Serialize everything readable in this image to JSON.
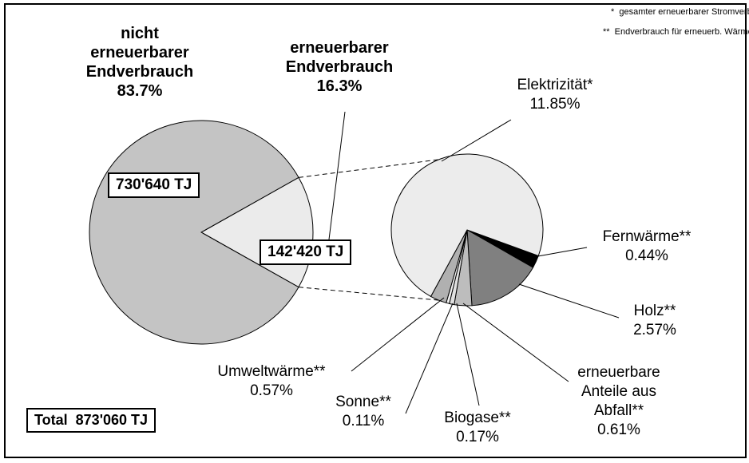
{
  "chart_data": [
    {
      "type": "pie",
      "categories": [
        "nicht erneuerbarer Endverbrauch",
        "erneuerbarer Endverbrauch"
      ],
      "values": [
        730640,
        142420
      ],
      "value_labels": [
        "730'640 TJ",
        "142'420 TJ"
      ],
      "shares": [
        83.7,
        16.3
      ],
      "share_labels": [
        "83.7%",
        "16.3%"
      ],
      "colors": [
        "#c4c4c4",
        "#ebebeb"
      ],
      "total": {
        "value": 873060,
        "label": "Total  873'060 TJ"
      },
      "notes": [
        "*  gesamter erneuerbarer Stromverbrauch",
        "**  Endverbrauch für erneuerb. Wärmeerzeug."
      ]
    },
    {
      "type": "pie",
      "categories": [
        "Fernwärme**",
        "Holz**",
        "erneuerbare Anteile aus Abfall**",
        "Biogase**",
        "Sonne**",
        "Umweltwärme**",
        "Elektrizität*"
      ],
      "values": [
        0.44,
        2.57,
        0.61,
        0.17,
        0.11,
        0.57,
        11.85
      ],
      "value_labels": [
        "0.44%",
        "2.57%",
        "0.61%",
        "0.17%",
        "0.11%",
        "0.57%",
        "11.85%"
      ],
      "colors": [
        "#000000",
        "#808080",
        "#bdbdbd",
        "#e0e0e0",
        "#f2f2f2",
        "#b0b0b0",
        "#ececec"
      ]
    }
  ]
}
